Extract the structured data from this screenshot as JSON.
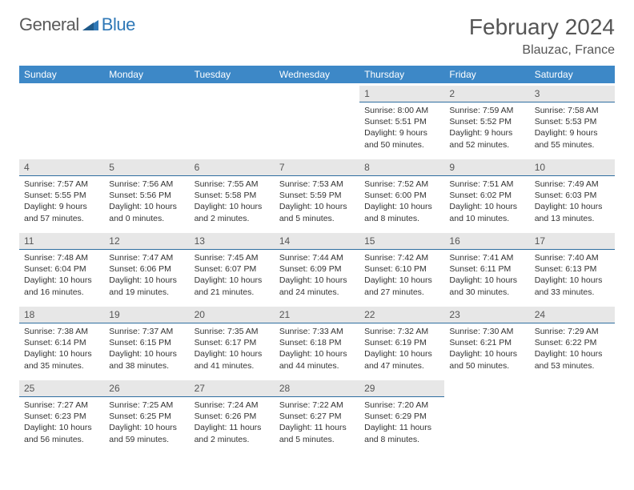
{
  "brand": {
    "general": "General",
    "blue": "Blue"
  },
  "colors": {
    "header_bg": "#3d88c7",
    "daynum_bg": "#e7e7e7",
    "daynum_border": "#2f6ea0",
    "brand_blue": "#2f78b7",
    "text": "#333333"
  },
  "title": "February 2024",
  "location": "Blauzac, France",
  "weekdays": [
    "Sunday",
    "Monday",
    "Tuesday",
    "Wednesday",
    "Thursday",
    "Friday",
    "Saturday"
  ],
  "weeks": [
    [
      null,
      null,
      null,
      null,
      {
        "n": "1",
        "sunrise": "8:00 AM",
        "sunset": "5:51 PM",
        "daylight": "9 hours and 50 minutes."
      },
      {
        "n": "2",
        "sunrise": "7:59 AM",
        "sunset": "5:52 PM",
        "daylight": "9 hours and 52 minutes."
      },
      {
        "n": "3",
        "sunrise": "7:58 AM",
        "sunset": "5:53 PM",
        "daylight": "9 hours and 55 minutes."
      }
    ],
    [
      {
        "n": "4",
        "sunrise": "7:57 AM",
        "sunset": "5:55 PM",
        "daylight": "9 hours and 57 minutes."
      },
      {
        "n": "5",
        "sunrise": "7:56 AM",
        "sunset": "5:56 PM",
        "daylight": "10 hours and 0 minutes."
      },
      {
        "n": "6",
        "sunrise": "7:55 AM",
        "sunset": "5:58 PM",
        "daylight": "10 hours and 2 minutes."
      },
      {
        "n": "7",
        "sunrise": "7:53 AM",
        "sunset": "5:59 PM",
        "daylight": "10 hours and 5 minutes."
      },
      {
        "n": "8",
        "sunrise": "7:52 AM",
        "sunset": "6:00 PM",
        "daylight": "10 hours and 8 minutes."
      },
      {
        "n": "9",
        "sunrise": "7:51 AM",
        "sunset": "6:02 PM",
        "daylight": "10 hours and 10 minutes."
      },
      {
        "n": "10",
        "sunrise": "7:49 AM",
        "sunset": "6:03 PM",
        "daylight": "10 hours and 13 minutes."
      }
    ],
    [
      {
        "n": "11",
        "sunrise": "7:48 AM",
        "sunset": "6:04 PM",
        "daylight": "10 hours and 16 minutes."
      },
      {
        "n": "12",
        "sunrise": "7:47 AM",
        "sunset": "6:06 PM",
        "daylight": "10 hours and 19 minutes."
      },
      {
        "n": "13",
        "sunrise": "7:45 AM",
        "sunset": "6:07 PM",
        "daylight": "10 hours and 21 minutes."
      },
      {
        "n": "14",
        "sunrise": "7:44 AM",
        "sunset": "6:09 PM",
        "daylight": "10 hours and 24 minutes."
      },
      {
        "n": "15",
        "sunrise": "7:42 AM",
        "sunset": "6:10 PM",
        "daylight": "10 hours and 27 minutes."
      },
      {
        "n": "16",
        "sunrise": "7:41 AM",
        "sunset": "6:11 PM",
        "daylight": "10 hours and 30 minutes."
      },
      {
        "n": "17",
        "sunrise": "7:40 AM",
        "sunset": "6:13 PM",
        "daylight": "10 hours and 33 minutes."
      }
    ],
    [
      {
        "n": "18",
        "sunrise": "7:38 AM",
        "sunset": "6:14 PM",
        "daylight": "10 hours and 35 minutes."
      },
      {
        "n": "19",
        "sunrise": "7:37 AM",
        "sunset": "6:15 PM",
        "daylight": "10 hours and 38 minutes."
      },
      {
        "n": "20",
        "sunrise": "7:35 AM",
        "sunset": "6:17 PM",
        "daylight": "10 hours and 41 minutes."
      },
      {
        "n": "21",
        "sunrise": "7:33 AM",
        "sunset": "6:18 PM",
        "daylight": "10 hours and 44 minutes."
      },
      {
        "n": "22",
        "sunrise": "7:32 AM",
        "sunset": "6:19 PM",
        "daylight": "10 hours and 47 minutes."
      },
      {
        "n": "23",
        "sunrise": "7:30 AM",
        "sunset": "6:21 PM",
        "daylight": "10 hours and 50 minutes."
      },
      {
        "n": "24",
        "sunrise": "7:29 AM",
        "sunset": "6:22 PM",
        "daylight": "10 hours and 53 minutes."
      }
    ],
    [
      {
        "n": "25",
        "sunrise": "7:27 AM",
        "sunset": "6:23 PM",
        "daylight": "10 hours and 56 minutes."
      },
      {
        "n": "26",
        "sunrise": "7:25 AM",
        "sunset": "6:25 PM",
        "daylight": "10 hours and 59 minutes."
      },
      {
        "n": "27",
        "sunrise": "7:24 AM",
        "sunset": "6:26 PM",
        "daylight": "11 hours and 2 minutes."
      },
      {
        "n": "28",
        "sunrise": "7:22 AM",
        "sunset": "6:27 PM",
        "daylight": "11 hours and 5 minutes."
      },
      {
        "n": "29",
        "sunrise": "7:20 AM",
        "sunset": "6:29 PM",
        "daylight": "11 hours and 8 minutes."
      },
      null,
      null
    ]
  ],
  "labels": {
    "sunrise": "Sunrise: ",
    "sunset": "Sunset: ",
    "daylight": "Daylight: "
  }
}
